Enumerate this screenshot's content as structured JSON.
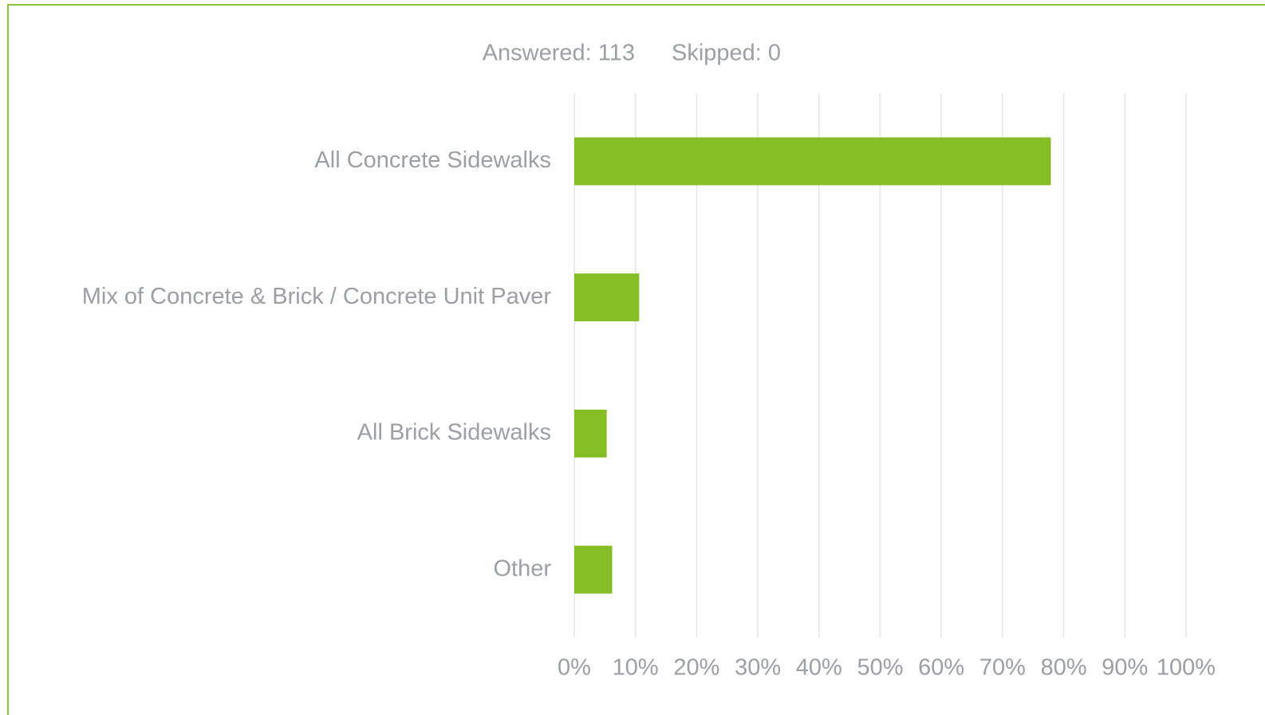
{
  "chart_data": {
    "type": "bar",
    "orientation": "horizontal",
    "annotations": [
      "Answered: 113",
      "Skipped: 0"
    ],
    "categories": [
      "All Concrete Sidewalks",
      "Mix of Concrete & Brick / Concrete Unit Paver",
      "All Brick Sidewalks",
      "Other"
    ],
    "values": [
      77.9,
      10.6,
      5.3,
      6.2
    ],
    "color": "#84bd24",
    "xlim": [
      0,
      100
    ],
    "xticks": [
      {
        "value": 0,
        "label": "0%"
      },
      {
        "value": 10,
        "label": "10%"
      },
      {
        "value": 20,
        "label": "20%"
      },
      {
        "value": 30,
        "label": "30%"
      },
      {
        "value": 40,
        "label": "40%"
      },
      {
        "value": 50,
        "label": "50%"
      },
      {
        "value": 60,
        "label": "60%"
      },
      {
        "value": 70,
        "label": "70%"
      },
      {
        "value": 80,
        "label": "80%"
      },
      {
        "value": 90,
        "label": "90%"
      },
      {
        "value": 100,
        "label": "100%"
      }
    ],
    "grid": true
  }
}
